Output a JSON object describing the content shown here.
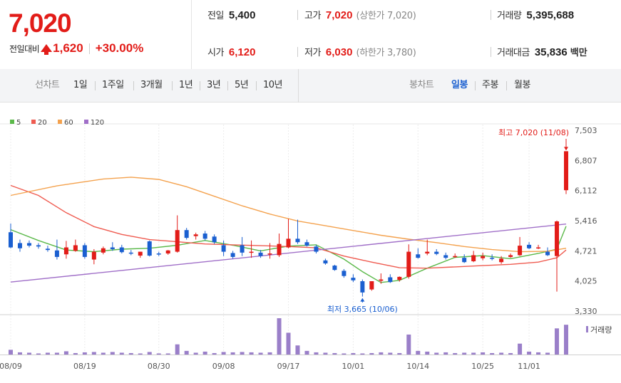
{
  "header": {
    "current_price": "7,020",
    "change_label": "전일대비",
    "change_icon": "up-triangle-icon",
    "change_value": "1,620",
    "change_rate": "+30.00%",
    "prev_close": {
      "label": "전일",
      "value": "5,400"
    },
    "open": {
      "label": "시가",
      "value": "6,120"
    },
    "high": {
      "label": "고가",
      "value": "7,020",
      "sub": "(상한가 7,020)"
    },
    "low": {
      "label": "저가",
      "value": "6,030",
      "sub": "(하한가 3,780)"
    },
    "volume": {
      "label": "거래량",
      "value": "5,395,688"
    },
    "amount": {
      "label": "거래대금",
      "value": "35,836",
      "unit": "백만"
    },
    "colors": {
      "up": "#e21c18",
      "down": "#1a5fd0"
    }
  },
  "period_bar": {
    "line_chart_label": "선차트",
    "line_periods": [
      "1일",
      "1주일",
      "3개월",
      "1년",
      "3년",
      "5년",
      "10년"
    ],
    "candle_chart_label": "봉차트",
    "candle_periods": [
      "일봉",
      "주봉",
      "월봉"
    ],
    "candle_selected": "일봉"
  },
  "chart_data": {
    "type": "candlestick",
    "legend": [
      {
        "name": "5",
        "color": "#5bb94a"
      },
      {
        "name": "20",
        "color": "#ef5b50"
      },
      {
        "name": "60",
        "color": "#f4a24e"
      },
      {
        "name": "120",
        "color": "#a06fc8"
      }
    ],
    "y_ticks": [
      "7,503",
      "6,807",
      "6,112",
      "5,416",
      "4,721",
      "4,025",
      "3,330"
    ],
    "ylim": [
      3330,
      7503
    ],
    "x_labels": [
      {
        "label": "08/09",
        "index": 0
      },
      {
        "label": "08/19",
        "index": 8
      },
      {
        "label": "08/30",
        "index": 16
      },
      {
        "label": "09/08",
        "index": 23
      },
      {
        "label": "09/17",
        "index": 30
      },
      {
        "label": "10/01",
        "index": 37
      },
      {
        "label": "10/14",
        "index": 44
      },
      {
        "label": "10/25",
        "index": 51
      },
      {
        "label": "11/01",
        "index": 56
      }
    ],
    "high_annotation": "최고 7,020 (11/08)",
    "low_annotation": "최저 3,665 (10/06)",
    "volume_label": "거래량",
    "candles": [
      {
        "o": 5150,
        "h": 5350,
        "c": 4800,
        "l": 4780,
        "v": 0.13
      },
      {
        "o": 4900,
        "h": 4980,
        "c": 4780,
        "l": 4700,
        "v": 0.06
      },
      {
        "o": 4900,
        "h": 4960,
        "c": 4840,
        "l": 4800,
        "v": 0.05
      },
      {
        "o": 4850,
        "h": 4900,
        "c": 4820,
        "l": 4770,
        "v": 0.03
      },
      {
        "o": 4770,
        "h": 4840,
        "c": 4740,
        "l": 4700,
        "v": 0.05
      },
      {
        "o": 4730,
        "h": 4980,
        "c": 4580,
        "l": 4520,
        "v": 0.05
      },
      {
        "o": 4640,
        "h": 4950,
        "c": 4800,
        "l": 4540,
        "v": 0.09
      },
      {
        "o": 4720,
        "h": 4980,
        "c": 4850,
        "l": 4700,
        "v": 0.04
      },
      {
        "o": 4850,
        "h": 4900,
        "c": 4580,
        "l": 4540,
        "v": 0.06
      },
      {
        "o": 4520,
        "h": 4760,
        "c": 4700,
        "l": 4410,
        "v": 0.07
      },
      {
        "o": 4680,
        "h": 4820,
        "c": 4780,
        "l": 4640,
        "v": 0.05
      },
      {
        "o": 4800,
        "h": 4920,
        "c": 4760,
        "l": 4720,
        "v": 0.07
      },
      {
        "o": 4800,
        "h": 4860,
        "c": 4690,
        "l": 4660,
        "v": 0.05
      },
      {
        "o": 4680,
        "h": 4740,
        "c": 4660,
        "l": 4620,
        "v": 0.04
      },
      {
        "o": 4610,
        "h": 4700,
        "c": 4700,
        "l": 4560,
        "v": 0.03
      },
      {
        "o": 4940,
        "h": 4960,
        "c": 4610,
        "l": 4590,
        "v": 0.07
      },
      {
        "o": 4660,
        "h": 4700,
        "c": 4650,
        "l": 4600,
        "v": 0.03
      },
      {
        "o": 4660,
        "h": 4740,
        "c": 4730,
        "l": 4630,
        "v": 0.03
      },
      {
        "o": 4700,
        "h": 5540,
        "c": 5200,
        "l": 4680,
        "v": 0.28
      },
      {
        "o": 5200,
        "h": 5250,
        "c": 5020,
        "l": 4980,
        "v": 0.1
      },
      {
        "o": 5060,
        "h": 5140,
        "c": 5100,
        "l": 4980,
        "v": 0.05
      },
      {
        "o": 5120,
        "h": 5180,
        "c": 5000,
        "l": 4960,
        "v": 0.08
      },
      {
        "o": 5050,
        "h": 5100,
        "c": 4920,
        "l": 4880,
        "v": 0.04
      },
      {
        "o": 4850,
        "h": 4960,
        "c": 4700,
        "l": 4600,
        "v": 0.07
      },
      {
        "o": 4670,
        "h": 4720,
        "c": 4580,
        "l": 4540,
        "v": 0.06
      },
      {
        "o": 4850,
        "h": 5040,
        "c": 4680,
        "l": 4600,
        "v": 0.07
      },
      {
        "o": 4700,
        "h": 4960,
        "c": 4700,
        "l": 4560,
        "v": 0.06
      },
      {
        "o": 4680,
        "h": 4740,
        "c": 4600,
        "l": 4560,
        "v": 0.05
      },
      {
        "o": 4640,
        "h": 4900,
        "c": 4660,
        "l": 4540,
        "v": 0.06
      },
      {
        "o": 4620,
        "h": 5120,
        "c": 4880,
        "l": 4580,
        "v": 1.0
      },
      {
        "o": 4800,
        "h": 5460,
        "c": 5000,
        "l": 4780,
        "v": 0.6
      },
      {
        "o": 5000,
        "h": 5440,
        "c": 4920,
        "l": 4880,
        "v": 0.25
      },
      {
        "o": 4920,
        "h": 4980,
        "c": 4840,
        "l": 4820,
        "v": 0.1
      },
      {
        "o": 4820,
        "h": 4860,
        "c": 4700,
        "l": 4660,
        "v": 0.06
      },
      {
        "o": 4500,
        "h": 4540,
        "c": 4430,
        "l": 4400,
        "v": 0.05
      },
      {
        "o": 4380,
        "h": 4400,
        "c": 4280,
        "l": 4260,
        "v": 0.04
      },
      {
        "o": 4260,
        "h": 4300,
        "c": 4140,
        "l": 4100,
        "v": 0.03
      },
      {
        "o": 4100,
        "h": 4180,
        "c": 4040,
        "l": 4000,
        "v": 0.04
      },
      {
        "o": 4020,
        "h": 4060,
        "c": 3760,
        "l": 3665,
        "v": 0.03
      },
      {
        "o": 3830,
        "h": 4020,
        "c": 4020,
        "l": 3800,
        "v": 0.04
      },
      {
        "o": 4030,
        "h": 4200,
        "c": 4060,
        "l": 3960,
        "v": 0.06
      },
      {
        "o": 4110,
        "h": 4180,
        "c": 4000,
        "l": 3980,
        "v": 0.05
      },
      {
        "o": 4050,
        "h": 4130,
        "c": 4120,
        "l": 4010,
        "v": 0.04
      },
      {
        "o": 4120,
        "h": 4870,
        "c": 4700,
        "l": 4080,
        "v": 0.55
      },
      {
        "o": 4640,
        "h": 4780,
        "c": 4560,
        "l": 4540,
        "v": 0.1
      },
      {
        "o": 4660,
        "h": 4980,
        "c": 4700,
        "l": 4620,
        "v": 0.08
      },
      {
        "o": 4700,
        "h": 4760,
        "c": 4650,
        "l": 4620,
        "v": 0.05
      },
      {
        "o": 4620,
        "h": 4680,
        "c": 4560,
        "l": 4520,
        "v": 0.06
      },
      {
        "o": 4600,
        "h": 4660,
        "c": 4600,
        "l": 4560,
        "v": 0.04
      },
      {
        "o": 4560,
        "h": 4640,
        "c": 4460,
        "l": 4440,
        "v": 0.05
      },
      {
        "o": 4480,
        "h": 4720,
        "c": 4620,
        "l": 4460,
        "v": 0.05
      },
      {
        "o": 4550,
        "h": 4680,
        "c": 4600,
        "l": 4500,
        "v": 0.06
      },
      {
        "o": 4560,
        "h": 4640,
        "c": 4540,
        "l": 4500,
        "v": 0.04
      },
      {
        "o": 4460,
        "h": 4600,
        "c": 4540,
        "l": 4420,
        "v": 0.05
      },
      {
        "o": 4580,
        "h": 4660,
        "c": 4620,
        "l": 4560,
        "v": 0.04
      },
      {
        "o": 4620,
        "h": 5040,
        "c": 4840,
        "l": 4600,
        "v": 0.3
      },
      {
        "o": 4860,
        "h": 4920,
        "c": 4780,
        "l": 4760,
        "v": 0.08
      },
      {
        "o": 4780,
        "h": 4860,
        "c": 4800,
        "l": 4760,
        "v": 0.06
      },
      {
        "o": 4700,
        "h": 4800,
        "c": 4620,
        "l": 4600,
        "v": 0.05
      },
      {
        "o": 4600,
        "h": 5420,
        "c": 5400,
        "l": 3780,
        "v": 0.72
      },
      {
        "o": 6120,
        "h": 7020,
        "c": 7020,
        "l": 6030,
        "v": 0.82
      }
    ],
    "ma": {
      "5": [
        [
          0,
          5210
        ],
        [
          3,
          4960
        ],
        [
          6,
          4740
        ],
        [
          9,
          4700
        ],
        [
          12,
          4760
        ],
        [
          15,
          4780
        ],
        [
          18,
          4850
        ],
        [
          21,
          4960
        ],
        [
          24,
          4850
        ],
        [
          27,
          4720
        ],
        [
          30,
          4830
        ],
        [
          33,
          4860
        ],
        [
          36,
          4530
        ],
        [
          38,
          4240
        ],
        [
          40,
          3990
        ],
        [
          42,
          4040
        ],
        [
          45,
          4320
        ],
        [
          48,
          4570
        ],
        [
          51,
          4610
        ],
        [
          54,
          4540
        ],
        [
          57,
          4660
        ],
        [
          59,
          4760
        ],
        [
          60,
          5290
        ]
      ],
      "20": [
        [
          0,
          6230
        ],
        [
          3,
          6000
        ],
        [
          6,
          5600
        ],
        [
          9,
          5280
        ],
        [
          12,
          5100
        ],
        [
          15,
          4980
        ],
        [
          18,
          4930
        ],
        [
          21,
          4880
        ],
        [
          24,
          4860
        ],
        [
          27,
          4840
        ],
        [
          30,
          4820
        ],
        [
          33,
          4790
        ],
        [
          36,
          4600
        ],
        [
          39,
          4460
        ],
        [
          42,
          4330
        ],
        [
          45,
          4320
        ],
        [
          48,
          4350
        ],
        [
          51,
          4380
        ],
        [
          54,
          4410
        ],
        [
          57,
          4460
        ],
        [
          59,
          4560
        ],
        [
          60,
          4740
        ]
      ],
      "60": [
        [
          0,
          6000
        ],
        [
          5,
          6220
        ],
        [
          10,
          6380
        ],
        [
          13,
          6420
        ],
        [
          16,
          6370
        ],
        [
          19,
          6200
        ],
        [
          22,
          5980
        ],
        [
          25,
          5760
        ],
        [
          28,
          5570
        ],
        [
          31,
          5410
        ],
        [
          34,
          5300
        ],
        [
          37,
          5190
        ],
        [
          40,
          5080
        ],
        [
          43,
          4990
        ],
        [
          46,
          4910
        ],
        [
          49,
          4820
        ],
        [
          52,
          4750
        ],
        [
          55,
          4700
        ],
        [
          58,
          4710
        ],
        [
          60,
          4780
        ]
      ],
      "120": [
        [
          0,
          4000
        ],
        [
          60,
          5340
        ]
      ]
    }
  }
}
